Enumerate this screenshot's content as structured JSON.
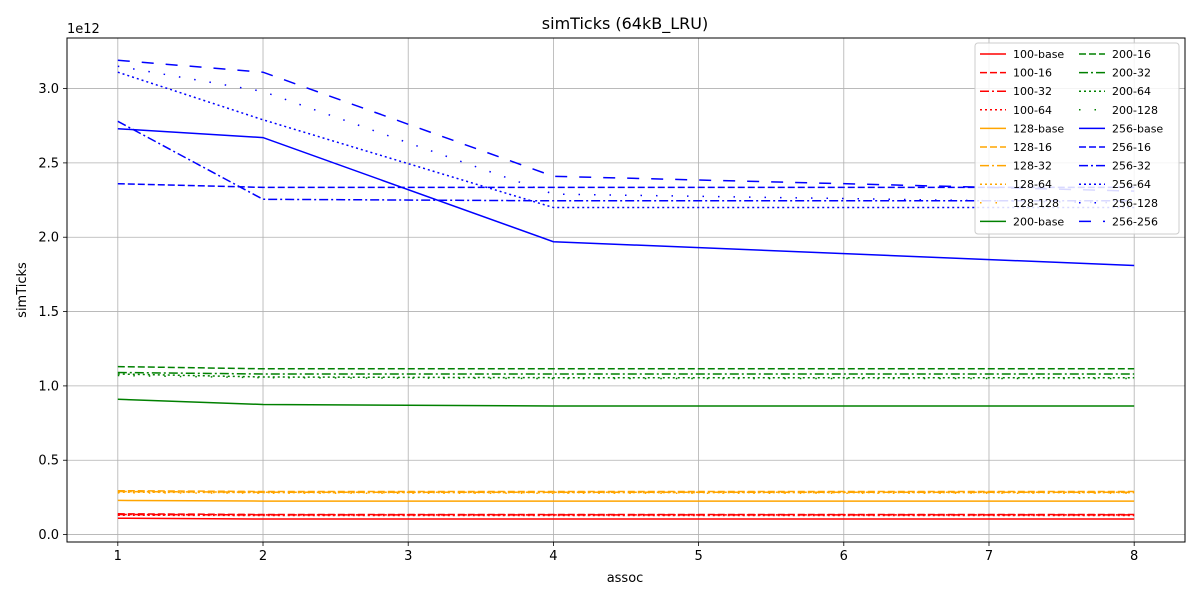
{
  "chart_data": {
    "type": "line",
    "title": "simTicks (64kB_LRU)",
    "xlabel": "assoc",
    "ylabel": "simTicks",
    "y_offset_label": "1e12",
    "x_ticks": [
      1,
      2,
      3,
      4,
      5,
      6,
      7,
      8
    ],
    "y_ticks": [
      "0.0",
      "0.5",
      "1.0",
      "1.5",
      "2.0",
      "2.5",
      "3.0"
    ],
    "xlim": [
      0.65,
      8.35
    ],
    "ylim": [
      -0.05,
      3.34
    ],
    "y_unit_scale": "1e12",
    "x": [
      1,
      2,
      4,
      8
    ],
    "grid": true,
    "legend_position": "top-right",
    "legend_columns": 2,
    "series": [
      {
        "name": "100-base",
        "color": "#ff0000",
        "style": "solid",
        "values": [
          0.11,
          0.105,
          0.105,
          0.105
        ]
      },
      {
        "name": "100-16",
        "color": "#ff0000",
        "style": "dashed",
        "values": [
          0.14,
          0.135,
          0.135,
          0.135
        ]
      },
      {
        "name": "100-32",
        "color": "#ff0000",
        "style": "dashdot",
        "values": [
          0.135,
          0.132,
          0.132,
          0.132
        ]
      },
      {
        "name": "100-64",
        "color": "#ff0000",
        "style": "dotted",
        "values": [
          0.13,
          0.128,
          0.128,
          0.128
        ]
      },
      {
        "name": "128-base",
        "color": "#ffa500",
        "style": "solid",
        "values": [
          0.23,
          0.225,
          0.225,
          0.225
        ]
      },
      {
        "name": "128-16",
        "color": "#ffa500",
        "style": "dashed",
        "values": [
          0.295,
          0.29,
          0.29,
          0.29
        ]
      },
      {
        "name": "128-32",
        "color": "#ffa500",
        "style": "dashdot",
        "values": [
          0.29,
          0.285,
          0.285,
          0.285
        ]
      },
      {
        "name": "128-64",
        "color": "#ffa500",
        "style": "dotted",
        "values": [
          0.285,
          0.282,
          0.282,
          0.282
        ]
      },
      {
        "name": "128-128",
        "color": "#ffa500",
        "style": "loose",
        "values": [
          0.28,
          0.278,
          0.278,
          0.278
        ]
      },
      {
        "name": "200-base",
        "color": "#008000",
        "style": "solid",
        "values": [
          0.91,
          0.875,
          0.865,
          0.865
        ]
      },
      {
        "name": "200-16",
        "color": "#008000",
        "style": "dashed",
        "values": [
          1.13,
          1.115,
          1.115,
          1.115
        ]
      },
      {
        "name": "200-32",
        "color": "#008000",
        "style": "dashdot",
        "values": [
          1.09,
          1.08,
          1.08,
          1.08
        ]
      },
      {
        "name": "200-64",
        "color": "#008000",
        "style": "dotted",
        "values": [
          1.08,
          1.06,
          1.055,
          1.055
        ]
      },
      {
        "name": "200-128",
        "color": "#008000",
        "style": "loose",
        "values": [
          1.07,
          1.055,
          1.05,
          1.05
        ]
      },
      {
        "name": "256-base",
        "color": "#0000ff",
        "style": "solid",
        "values": [
          2.73,
          2.67,
          1.97,
          1.81
        ]
      },
      {
        "name": "256-16",
        "color": "#0000ff",
        "style": "dashed",
        "values": [
          2.36,
          2.335,
          2.335,
          2.335
        ]
      },
      {
        "name": "256-32",
        "color": "#0000ff",
        "style": "dashdot",
        "values": [
          2.78,
          2.255,
          2.245,
          2.245
        ]
      },
      {
        "name": "256-64",
        "color": "#0000ff",
        "style": "dotted",
        "values": [
          3.11,
          2.79,
          2.2,
          2.2
        ]
      },
      {
        "name": "256-128",
        "color": "#0000ff",
        "style": "loose",
        "values": [
          3.15,
          2.98,
          2.29,
          2.23
        ]
      },
      {
        "name": "256-256",
        "color": "#0000ff",
        "style": "longdash",
        "values": [
          3.19,
          3.11,
          2.41,
          2.31
        ]
      }
    ]
  }
}
